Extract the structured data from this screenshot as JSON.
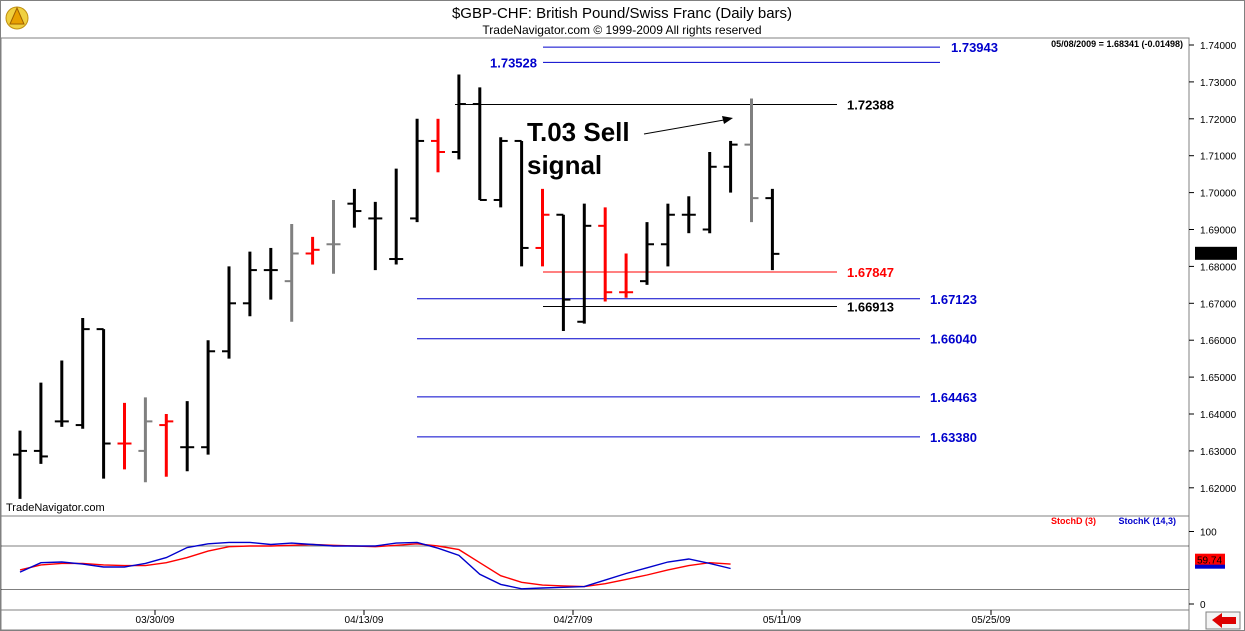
{
  "header": {
    "title": "$GBP-CHF:  British Pound/Swiss Franc  (Daily bars)",
    "copyright": "TradeNavigator.com © 1999-2009 All rights reserved",
    "quote": "05/08/2009 = 1.68341 (-0.01498)",
    "watermark": "TradeNavigator.com"
  },
  "chart_data": [
    {
      "type": "ohlc",
      "title": "$GBP-CHF:  British Pound/Swiss Franc  (Daily bars)",
      "ylim": [
        1.612,
        1.742
      ],
      "y_ticks": [
        "1.74000",
        "1.73000",
        "1.72000",
        "1.71000",
        "1.70000",
        "1.69000",
        "1.68000",
        "1.67000",
        "1.66000",
        "1.65000",
        "1.64000",
        "1.63000",
        "1.62000"
      ],
      "x_ticks": [
        "03/30/09",
        "04/13/09",
        "04/27/09",
        "05/11/09",
        "05/25/09"
      ],
      "last_value": "1.68341",
      "bars": [
        {
          "o": 1.629,
          "h": 1.6355,
          "l": 1.617,
          "c": 1.63,
          "color": "#000000"
        },
        {
          "o": 1.63,
          "h": 1.6485,
          "l": 1.6265,
          "c": 1.6285,
          "color": "#000000"
        },
        {
          "o": 1.638,
          "h": 1.6545,
          "l": 1.6365,
          "c": 1.638,
          "color": "#000000"
        },
        {
          "o": 1.637,
          "h": 1.666,
          "l": 1.636,
          "c": 1.663,
          "color": "#000000"
        },
        {
          "o": 1.663,
          "h": 1.663,
          "l": 1.6225,
          "c": 1.632,
          "color": "#000000"
        },
        {
          "o": 1.632,
          "h": 1.643,
          "l": 1.625,
          "c": 1.632,
          "color": "#ff0000"
        },
        {
          "o": 1.63,
          "h": 1.6445,
          "l": 1.6215,
          "c": 1.638,
          "color": "#808080"
        },
        {
          "o": 1.637,
          "h": 1.64,
          "l": 1.623,
          "c": 1.638,
          "color": "#ff0000"
        },
        {
          "o": 1.631,
          "h": 1.6435,
          "l": 1.6245,
          "c": 1.631,
          "color": "#000000"
        },
        {
          "o": 1.631,
          "h": 1.66,
          "l": 1.629,
          "c": 1.657,
          "color": "#000000"
        },
        {
          "o": 1.657,
          "h": 1.68,
          "l": 1.655,
          "c": 1.67,
          "color": "#000000"
        },
        {
          "o": 1.67,
          "h": 1.684,
          "l": 1.6665,
          "c": 1.679,
          "color": "#000000"
        },
        {
          "o": 1.679,
          "h": 1.685,
          "l": 1.671,
          "c": 1.679,
          "color": "#000000"
        },
        {
          "o": 1.676,
          "h": 1.6915,
          "l": 1.665,
          "c": 1.6835,
          "color": "#808080"
        },
        {
          "o": 1.6835,
          "h": 1.688,
          "l": 1.6805,
          "c": 1.6845,
          "color": "#ff0000"
        },
        {
          "o": 1.686,
          "h": 1.698,
          "l": 1.678,
          "c": 1.686,
          "color": "#808080"
        },
        {
          "o": 1.697,
          "h": 1.701,
          "l": 1.6905,
          "c": 1.695,
          "color": "#000000"
        },
        {
          "o": 1.693,
          "h": 1.6975,
          "l": 1.679,
          "c": 1.693,
          "color": "#000000"
        },
        {
          "o": 1.682,
          "h": 1.7065,
          "l": 1.6805,
          "c": 1.682,
          "color": "#000000"
        },
        {
          "o": 1.693,
          "h": 1.72,
          "l": 1.692,
          "c": 1.714,
          "color": "#000000"
        },
        {
          "o": 1.714,
          "h": 1.72,
          "l": 1.7055,
          "c": 1.711,
          "color": "#ff0000"
        },
        {
          "o": 1.711,
          "h": 1.732,
          "l": 1.709,
          "c": 1.724,
          "color": "#000000"
        },
        {
          "o": 1.724,
          "h": 1.7285,
          "l": 1.698,
          "c": 1.698,
          "color": "#000000"
        },
        {
          "o": 1.698,
          "h": 1.715,
          "l": 1.696,
          "c": 1.714,
          "color": "#000000"
        },
        {
          "o": 1.714,
          "h": 1.714,
          "l": 1.68,
          "c": 1.685,
          "color": "#000000"
        },
        {
          "o": 1.685,
          "h": 1.701,
          "l": 1.68,
          "c": 1.694,
          "color": "#ff0000"
        },
        {
          "o": 1.694,
          "h": 1.694,
          "l": 1.6625,
          "c": 1.671,
          "color": "#000000"
        },
        {
          "o": 1.665,
          "h": 1.697,
          "l": 1.6645,
          "c": 1.691,
          "color": "#000000"
        },
        {
          "o": 1.691,
          "h": 1.696,
          "l": 1.6705,
          "c": 1.673,
          "color": "#ff0000"
        },
        {
          "o": 1.673,
          "h": 1.6835,
          "l": 1.6715,
          "c": 1.673,
          "color": "#ff0000"
        },
        {
          "o": 1.676,
          "h": 1.692,
          "l": 1.675,
          "c": 1.686,
          "color": "#000000"
        },
        {
          "o": 1.686,
          "h": 1.697,
          "l": 1.68,
          "c": 1.694,
          "color": "#000000"
        },
        {
          "o": 1.694,
          "h": 1.699,
          "l": 1.689,
          "c": 1.694,
          "color": "#000000"
        },
        {
          "o": 1.69,
          "h": 1.711,
          "l": 1.689,
          "c": 1.707,
          "color": "#000000"
        },
        {
          "o": 1.707,
          "h": 1.714,
          "l": 1.7,
          "c": 1.713,
          "color": "#000000"
        },
        {
          "o": 1.713,
          "h": 1.7255,
          "l": 1.692,
          "c": 1.6985,
          "color": "#808080"
        },
        {
          "o": 1.6985,
          "h": 1.701,
          "l": 1.679,
          "c": 1.6834,
          "color": "#000000"
        }
      ],
      "levels": [
        {
          "label": "1.73943",
          "value": 1.73943,
          "color": "#0000cc"
        },
        {
          "label": "1.73528",
          "value": 1.73528,
          "color": "#0000cc"
        },
        {
          "label": "1.72388",
          "value": 1.72388,
          "color": "#000000"
        },
        {
          "label": "1.67847",
          "value": 1.67847,
          "color": "#ff0000"
        },
        {
          "label": "1.67123",
          "value": 1.67123,
          "color": "#0000cc"
        },
        {
          "label": "1.66913",
          "value": 1.66913,
          "color": "#000000"
        },
        {
          "label": "1.66040",
          "value": 1.6604,
          "color": "#0000cc"
        },
        {
          "label": "1.64463",
          "value": 1.64463,
          "color": "#0000cc"
        },
        {
          "label": "1.63380",
          "value": 1.6338,
          "color": "#0000cc"
        }
      ],
      "annotation": {
        "line1": "T.03 Sell",
        "line2": "signal"
      }
    },
    {
      "type": "line",
      "title": "",
      "ylim": [
        0,
        100
      ],
      "y_ticks": [
        "100",
        "0"
      ],
      "legend": {
        "d_label": "StochD (3)",
        "k_label": "StochK (14,3)"
      },
      "last_value": "59.74",
      "series": [
        {
          "name": "StochD (3)",
          "color": "#ff0000",
          "values": [
            47,
            54,
            56,
            56,
            54,
            53,
            53,
            57,
            64,
            73,
            79,
            80,
            80,
            81,
            82,
            81,
            80,
            79,
            81,
            83,
            80,
            75,
            57,
            39,
            30,
            26,
            25,
            24,
            28,
            34,
            40,
            47,
            53,
            57,
            55
          ]
        },
        {
          "name": "StochK (14,3)",
          "color": "#0000cc",
          "values": [
            44,
            57,
            58,
            55,
            51,
            51,
            56,
            64,
            78,
            83,
            85,
            85,
            82,
            84,
            82,
            80,
            80,
            80,
            84,
            85,
            77,
            67,
            41,
            27,
            21,
            22,
            23,
            24,
            33,
            42,
            50,
            58,
            62,
            56,
            49
          ]
        }
      ]
    }
  ]
}
